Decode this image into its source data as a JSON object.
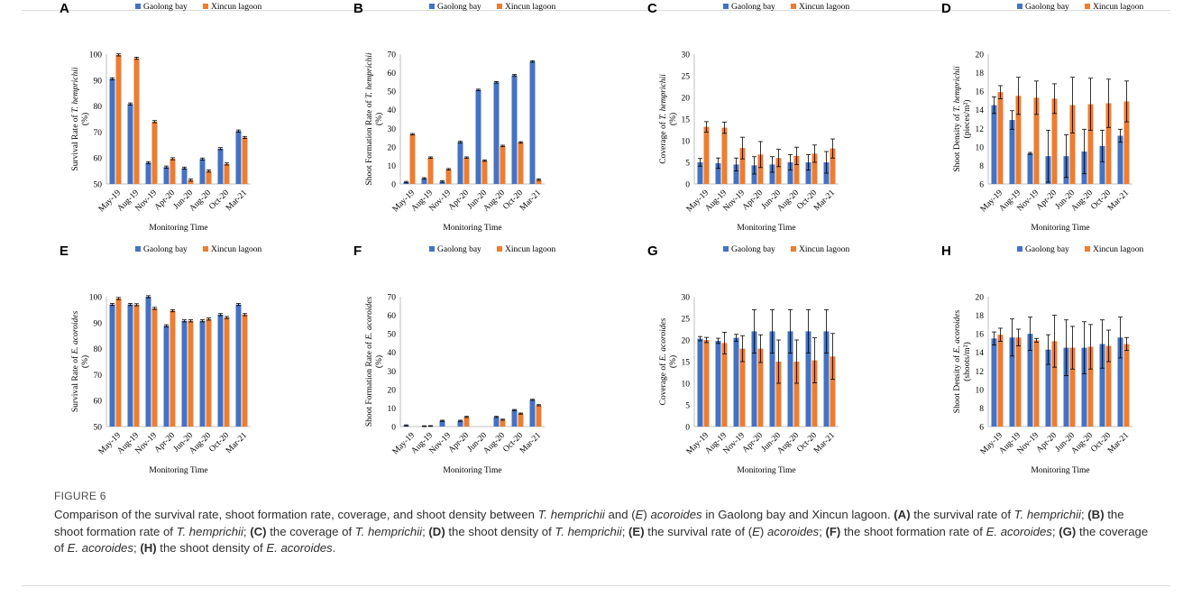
{
  "figure_label": "FIGURE 6",
  "caption": [
    {
      "t": "Comparison of the survival rate, shoot formation rate, coverage, and shoot density between "
    },
    {
      "i": "T. hemprichii"
    },
    {
      "t": " and ("
    },
    {
      "i": "E"
    },
    {
      "t": ") "
    },
    {
      "i": "acoroides"
    },
    {
      "t": " in Gaolong bay and Xincun lagoon. "
    },
    {
      "b": "(A)"
    },
    {
      "t": " the survival rate of "
    },
    {
      "i": "T. hemprichii"
    },
    {
      "t": "; "
    },
    {
      "b": "(B)"
    },
    {
      "t": " the shoot formation rate of "
    },
    {
      "i": "T. hemprichii"
    },
    {
      "t": "; "
    },
    {
      "b": "(C)"
    },
    {
      "t": " the coverage of "
    },
    {
      "i": "T. hemprichii"
    },
    {
      "t": "; "
    },
    {
      "b": "(D)"
    },
    {
      "t": " the shoot density of "
    },
    {
      "i": "T. hemprichii"
    },
    {
      "t": "; "
    },
    {
      "b": "(E)"
    },
    {
      "t": " the survival rate of ("
    },
    {
      "i": "E"
    },
    {
      "t": ") "
    },
    {
      "i": "acoroides"
    },
    {
      "t": "; "
    },
    {
      "b": "(F)"
    },
    {
      "t": " the shoot formation rate of "
    },
    {
      "i": "E. acoroides"
    },
    {
      "t": "; "
    },
    {
      "b": "(G)"
    },
    {
      "t": " the coverage of "
    },
    {
      "i": "E. acoroides"
    },
    {
      "t": "; "
    },
    {
      "b": "(H)"
    },
    {
      "t": " the shoot density of "
    },
    {
      "i": "E. acoroides"
    },
    {
      "t": "."
    }
  ],
  "colors": {
    "gaolong": "#4472c4",
    "xincun": "#ed7d31",
    "axis": "#bfbfbf",
    "text": "#000000",
    "error": "#000000"
  },
  "chart_data": [
    {
      "panel": "A",
      "type": "bar",
      "categories": [
        "May-19",
        "Aug-19",
        "Nov-19",
        "Apr-20",
        "Jun-20",
        "Aug-20",
        "Oct-20",
        "Mar-21"
      ],
      "ylabel": [
        "Survival Rate of ",
        {
          "i": "T. hemprichii"
        },
        "(%)"
      ],
      "xlabel": "Monitoring Time",
      "ylim": [
        50,
        100
      ],
      "yticks": [
        50,
        60,
        70,
        80,
        90,
        100
      ],
      "series": [
        {
          "name": "Gaolong bay",
          "values": [
            90.5,
            80.8,
            58.2,
            56.5,
            56.1,
            59.6,
            63.6,
            70.4
          ],
          "errors": [
            0.4,
            0.4,
            0.4,
            0.4,
            0.4,
            0.4,
            0.4,
            0.4
          ]
        },
        {
          "name": "Xincun lagoon",
          "values": [
            99.7,
            98.4,
            74.0,
            59.7,
            51.5,
            55.0,
            57.7,
            67.9
          ],
          "errors": [
            0.4,
            0.4,
            0.4,
            0.4,
            0.4,
            0.4,
            0.4,
            0.4
          ]
        }
      ]
    },
    {
      "panel": "B",
      "type": "bar",
      "categories": [
        "May-19",
        "Aug-19",
        "Nov-19",
        "Apr-20",
        "Jun-20",
        "Aug-20",
        "Oct-20",
        "Mar-21"
      ],
      "ylabel": [
        "Shoot Formation Rate of ",
        {
          "i": "T. hemprichii"
        },
        "(%)"
      ],
      "xlabel": "Monitoring Time",
      "ylim": [
        0,
        70
      ],
      "yticks": [
        0,
        10,
        20,
        30,
        40,
        50,
        60,
        70
      ],
      "series": [
        {
          "name": "Gaolong bay",
          "values": [
            1.0,
            3.0,
            1.3,
            22.6,
            50.7,
            54.8,
            58.6,
            66.0
          ],
          "errors": [
            0.4,
            0.4,
            0.4,
            0.4,
            0.4,
            0.4,
            0.4,
            0.4
          ]
        },
        {
          "name": "Xincun lagoon",
          "values": [
            26.8,
            14.2,
            7.9,
            14.2,
            12.6,
            20.5,
            22.4,
            2.3
          ],
          "errors": [
            0.4,
            0.4,
            0.4,
            0.4,
            0.4,
            0.4,
            0.4,
            0.4
          ]
        }
      ]
    },
    {
      "panel": "C",
      "type": "bar",
      "categories": [
        "May-19",
        "Aug-19",
        "Nov-19",
        "Apr-20",
        "Jun-20",
        "Aug-20",
        "Oct-20",
        "Mar-21"
      ],
      "ylabel": [
        "Coverage  of ",
        {
          "i": "T. hemprichii"
        },
        "(%)"
      ],
      "xlabel": "Monitoring Time",
      "ylim": [
        0,
        30
      ],
      "yticks": [
        0,
        5,
        10,
        15,
        20,
        25,
        30
      ],
      "series": [
        {
          "name": "Gaolong bay",
          "values": [
            5.0,
            4.8,
            4.5,
            4.3,
            4.5,
            5.0,
            5.0,
            5.0
          ],
          "errors": [
            0.9,
            1.2,
            1.5,
            2.0,
            1.8,
            1.8,
            1.8,
            2.5
          ]
        },
        {
          "name": "Xincun lagoon",
          "values": [
            13.2,
            13.0,
            8.3,
            6.8,
            6.0,
            6.5,
            7.0,
            8.2
          ],
          "errors": [
            1.2,
            1.3,
            2.5,
            3.0,
            2.0,
            2.0,
            2.0,
            2.2
          ]
        }
      ]
    },
    {
      "panel": "D",
      "type": "bar",
      "categories": [
        "May-19",
        "Aug-19",
        "Nov-19",
        "Apr-20",
        "Jun-20",
        "Aug-20",
        "Oct-20",
        "Mar-21"
      ],
      "ylabel": [
        "Shoot Density of ",
        {
          "i": "T. hemprichii"
        },
        "(pieces/m²)"
      ],
      "xlabel": "Monitoring Time",
      "ylim": [
        6,
        20
      ],
      "yticks": [
        6,
        8,
        10,
        12,
        14,
        16,
        18,
        20
      ],
      "series": [
        {
          "name": "Gaolong bay",
          "values": [
            14.5,
            12.9,
            9.3,
            9.0,
            9.0,
            9.5,
            10.1,
            11.2
          ],
          "errors": [
            0.9,
            1.0,
            0.1,
            2.8,
            2.3,
            2.4,
            1.7,
            0.7
          ]
        },
        {
          "name": "Xincun lagoon",
          "values": [
            15.9,
            15.5,
            15.3,
            15.2,
            14.5,
            14.6,
            14.7,
            14.9
          ],
          "errors": [
            0.7,
            2.0,
            1.8,
            1.6,
            3.0,
            2.8,
            2.6,
            2.2
          ]
        }
      ]
    },
    {
      "panel": "E",
      "type": "bar",
      "categories": [
        "May-19",
        "Aug-19",
        "Nov-19",
        "Apr-20",
        "Jun-20",
        "Aug-20",
        "Oct-20",
        "Mar-21"
      ],
      "ylabel": [
        "Survival Rate of ",
        {
          "i": "E. acoroides"
        },
        "(%)"
      ],
      "xlabel": "Monitoring Time",
      "ylim": [
        50,
        100
      ],
      "yticks": [
        50,
        60,
        70,
        80,
        90,
        100
      ],
      "series": [
        {
          "name": "Gaolong bay",
          "values": [
            97.0,
            97.0,
            100.0,
            88.8,
            90.7,
            90.7,
            93.1,
            97.0
          ],
          "errors": [
            0.4,
            0.4,
            0.4,
            0.4,
            0.4,
            0.4,
            0.4,
            0.4
          ]
        },
        {
          "name": "Xincun lagoon",
          "values": [
            99.3,
            96.9,
            95.5,
            94.6,
            90.7,
            91.4,
            92.0,
            93.1
          ],
          "errors": [
            0.4,
            0.4,
            0.4,
            0.4,
            0.4,
            0.4,
            0.4,
            0.4
          ]
        }
      ]
    },
    {
      "panel": "F",
      "type": "bar",
      "categories": [
        "May-19",
        "Aug-19",
        "Nov-19",
        "Apr-20",
        "Jun-20",
        "Aug-20",
        "Oct-20",
        "Mar-21"
      ],
      "ylabel": [
        "Shoot Formation Rate of ",
        {
          "i": "E. acoroides"
        },
        "(%)"
      ],
      "xlabel": "Monitoring Time",
      "ylim": [
        0,
        70
      ],
      "yticks": [
        0,
        10,
        20,
        30,
        40,
        50,
        60,
        70
      ],
      "series": [
        {
          "name": "Gaolong bay",
          "values": [
            0.6,
            0.2,
            3.1,
            3.1,
            0.0,
            5.2,
            8.9,
            14.4
          ],
          "errors": [
            0.3,
            0.2,
            0.3,
            0.3,
            0.0,
            0.3,
            0.3,
            0.3
          ]
        },
        {
          "name": "Xincun lagoon",
          "values": [
            0.0,
            0.3,
            0.0,
            5.2,
            0.0,
            3.7,
            7.0,
            11.5
          ],
          "errors": [
            0.0,
            0.2,
            0.0,
            0.3,
            0.0,
            0.3,
            0.3,
            0.3
          ]
        }
      ]
    },
    {
      "panel": "G",
      "type": "bar",
      "categories": [
        "May-19",
        "Aug-19",
        "Nov-19",
        "Apr-20",
        "Jun-20",
        "Aug-20",
        "Oct-20",
        "Mar-21"
      ],
      "ylabel": [
        "Coverage  of ",
        {
          "i": "E. acoroides"
        },
        "(%)"
      ],
      "xlabel": "Monitoring Time",
      "ylim": [
        0,
        30
      ],
      "yticks": [
        0,
        5,
        10,
        15,
        20,
        25,
        30
      ],
      "series": [
        {
          "name": "Gaolong bay",
          "values": [
            20.3,
            19.8,
            20.5,
            22.0,
            22.0,
            22.0,
            22.0,
            22.0
          ],
          "errors": [
            0.5,
            0.6,
            0.8,
            5.0,
            5.0,
            5.0,
            5.0,
            5.0
          ]
        },
        {
          "name": "Xincun lagoon",
          "values": [
            20.0,
            19.3,
            18.0,
            18.0,
            15.0,
            15.0,
            15.3,
            16.2
          ],
          "errors": [
            0.6,
            2.5,
            3.0,
            3.2,
            5.0,
            5.0,
            5.2,
            5.3
          ]
        }
      ]
    },
    {
      "panel": "H",
      "type": "bar",
      "categories": [
        "May-19",
        "Aug-19",
        "Nov-19",
        "Apr-20",
        "Jun-20",
        "Aug-20",
        "Oct-20",
        "Mar-21"
      ],
      "ylabel": [
        "Shoot Density of ",
        {
          "i": "E. acoroides"
        },
        "(shoots/m²)"
      ],
      "xlabel": "Monitoring Time",
      "ylim": [
        6,
        20
      ],
      "yticks": [
        6,
        8,
        10,
        12,
        14,
        16,
        18,
        20
      ],
      "series": [
        {
          "name": "Gaolong bay",
          "values": [
            15.5,
            15.6,
            16.0,
            14.3,
            14.5,
            14.5,
            14.9,
            15.6
          ],
          "errors": [
            0.7,
            2.0,
            1.8,
            1.6,
            3.0,
            2.8,
            2.6,
            2.2
          ]
        },
        {
          "name": "Xincun lagoon",
          "values": [
            15.9,
            15.6,
            15.3,
            15.2,
            14.5,
            14.6,
            14.7,
            14.9
          ],
          "errors": [
            0.7,
            0.9,
            0.2,
            2.8,
            2.3,
            2.4,
            1.7,
            0.7
          ]
        }
      ]
    }
  ]
}
